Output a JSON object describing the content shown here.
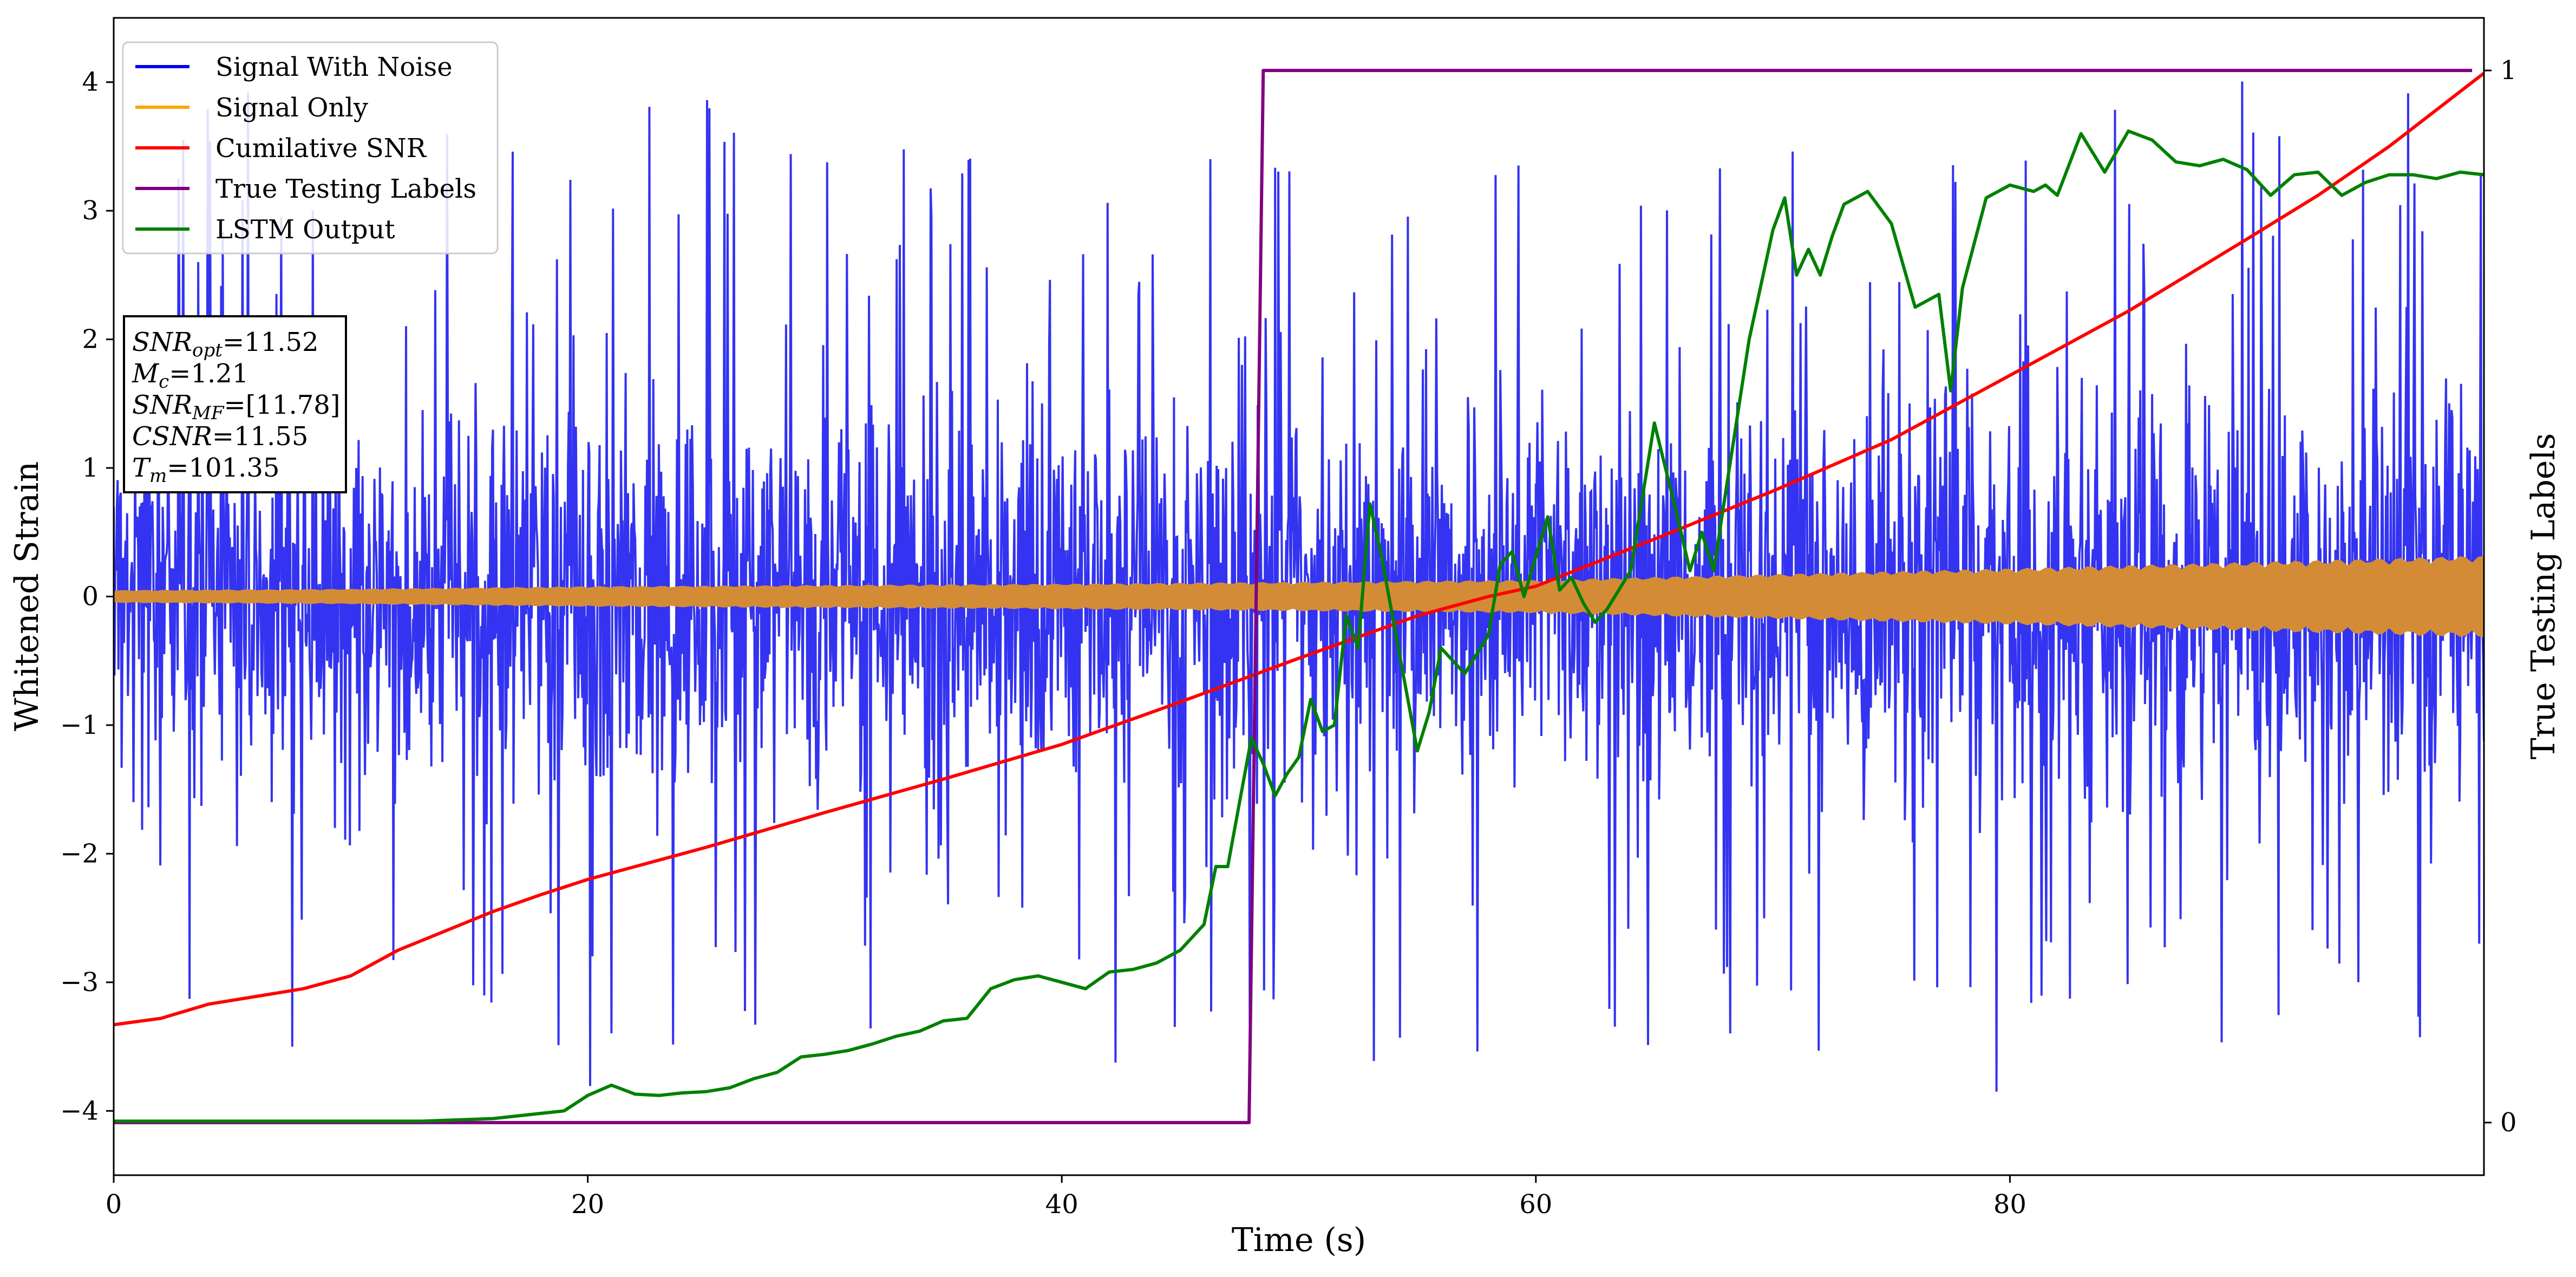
{
  "chart_data": {
    "type": "line",
    "xlabel": "Time (s)",
    "ylabel_left": "Whitened Strain",
    "ylabel_right": "True Testing Labels",
    "xlim": [
      0,
      100
    ],
    "ylim_left": [
      -4.5,
      4.5
    ],
    "ylim_right": [
      -0.05,
      1.05
    ],
    "x_ticks": [
      0,
      20,
      40,
      60,
      80
    ],
    "y_ticks_left": [
      -4,
      -3,
      -2,
      -1,
      0,
      1,
      2,
      3,
      4
    ],
    "y_ticks_right": [
      0,
      1
    ],
    "grid": false,
    "legend_position": "top-left",
    "series": [
      {
        "name": "Signal With Noise",
        "color": "#0000ee",
        "axis": "left",
        "style": "dense noise, mostly within ±2, spikes to about ±4",
        "typical_range": [
          -2.3,
          2.3
        ],
        "extreme_range": [
          -3.85,
          4.1
        ]
      },
      {
        "name": "Signal Only",
        "color": "#ffa500",
        "axis": "left",
        "style": "chirp band whose envelope grows over time",
        "envelope": [
          [
            0,
            0.05
          ],
          [
            10,
            0.06
          ],
          [
            20,
            0.08
          ],
          [
            40,
            0.1
          ],
          [
            60,
            0.13
          ],
          [
            80,
            0.22
          ],
          [
            100,
            0.32
          ]
        ]
      },
      {
        "name": "Cumilative SNR",
        "color": "#ff0000",
        "axis": "left",
        "points": [
          [
            0,
            -3.33
          ],
          [
            2,
            -3.28
          ],
          [
            4,
            -3.17
          ],
          [
            6,
            -3.11
          ],
          [
            8,
            -3.05
          ],
          [
            10,
            -2.95
          ],
          [
            12,
            -2.75
          ],
          [
            14,
            -2.6
          ],
          [
            16,
            -2.45
          ],
          [
            18,
            -2.32
          ],
          [
            20,
            -2.2
          ],
          [
            25,
            -1.95
          ],
          [
            30,
            -1.68
          ],
          [
            35,
            -1.42
          ],
          [
            40,
            -1.15
          ],
          [
            45,
            -0.82
          ],
          [
            50,
            -0.48
          ],
          [
            55,
            -0.15
          ],
          [
            58,
            0.0
          ],
          [
            60,
            0.08
          ],
          [
            63,
            0.3
          ],
          [
            66,
            0.52
          ],
          [
            70,
            0.82
          ],
          [
            75,
            1.22
          ],
          [
            80,
            1.72
          ],
          [
            85,
            2.22
          ],
          [
            90,
            2.78
          ],
          [
            93,
            3.12
          ],
          [
            96,
            3.5
          ],
          [
            100,
            4.07
          ]
        ]
      },
      {
        "name": "True Testing Labels",
        "color": "#800080",
        "axis": "right",
        "points": [
          [
            0,
            0
          ],
          [
            47.9,
            0
          ],
          [
            48.5,
            1
          ],
          [
            99.5,
            1
          ]
        ]
      },
      {
        "name": "LSTM Output",
        "color": "#008000",
        "axis": "left",
        "points": [
          [
            0,
            -4.08
          ],
          [
            13,
            -4.08
          ],
          [
            16,
            -4.06
          ],
          [
            18,
            -4.02
          ],
          [
            19,
            -4.0
          ],
          [
            20,
            -3.88
          ],
          [
            21,
            -3.8
          ],
          [
            22,
            -3.87
          ],
          [
            23,
            -3.88
          ],
          [
            24,
            -3.86
          ],
          [
            25,
            -3.85
          ],
          [
            26,
            -3.82
          ],
          [
            27,
            -3.75
          ],
          [
            28,
            -3.7
          ],
          [
            29,
            -3.58
          ],
          [
            30,
            -3.56
          ],
          [
            31,
            -3.53
          ],
          [
            32,
            -3.48
          ],
          [
            33,
            -3.42
          ],
          [
            34,
            -3.38
          ],
          [
            35,
            -3.3
          ],
          [
            36,
            -3.28
          ],
          [
            37,
            -3.05
          ],
          [
            38,
            -2.98
          ],
          [
            39,
            -2.95
          ],
          [
            40,
            -3.0
          ],
          [
            41,
            -3.05
          ],
          [
            42,
            -2.92
          ],
          [
            43,
            -2.9
          ],
          [
            44,
            -2.85
          ],
          [
            45,
            -2.75
          ],
          [
            46,
            -2.55
          ],
          [
            46.5,
            -2.1
          ],
          [
            47,
            -2.1
          ],
          [
            47.5,
            -1.6
          ],
          [
            48,
            -1.1
          ],
          [
            48.5,
            -1.3
          ],
          [
            49,
            -1.55
          ],
          [
            49.5,
            -1.38
          ],
          [
            50,
            -1.25
          ],
          [
            50.5,
            -0.8
          ],
          [
            51,
            -1.05
          ],
          [
            51.5,
            -1.0
          ],
          [
            52,
            -0.15
          ],
          [
            52.5,
            -0.4
          ],
          [
            53,
            0.72
          ],
          [
            53.5,
            0.3
          ],
          [
            54,
            -0.2
          ],
          [
            55,
            -1.2
          ],
          [
            55.5,
            -0.9
          ],
          [
            56,
            -0.4
          ],
          [
            57,
            -0.6
          ],
          [
            58,
            -0.3
          ],
          [
            58.5,
            0.25
          ],
          [
            59,
            0.35
          ],
          [
            59.5,
            0.0
          ],
          [
            60.5,
            0.62
          ],
          [
            61,
            0.05
          ],
          [
            61.5,
            0.15
          ],
          [
            62,
            -0.05
          ],
          [
            62.5,
            -0.2
          ],
          [
            63,
            -0.1
          ],
          [
            64,
            0.2
          ],
          [
            65,
            1.35
          ],
          [
            66,
            0.6
          ],
          [
            66.5,
            0.2
          ],
          [
            67,
            0.5
          ],
          [
            67.5,
            0.2
          ],
          [
            68,
            0.8
          ],
          [
            69,
            2.0
          ],
          [
            70,
            2.85
          ],
          [
            70.5,
            3.1
          ],
          [
            71,
            2.5
          ],
          [
            71.5,
            2.7
          ],
          [
            72,
            2.5
          ],
          [
            72.5,
            2.8
          ],
          [
            73,
            3.05
          ],
          [
            74,
            3.15
          ],
          [
            75,
            2.9
          ],
          [
            76,
            2.25
          ],
          [
            77,
            2.35
          ],
          [
            77.5,
            1.6
          ],
          [
            78,
            2.4
          ],
          [
            79,
            3.1
          ],
          [
            80,
            3.2
          ],
          [
            81,
            3.15
          ],
          [
            81.5,
            3.2
          ],
          [
            82,
            3.12
          ],
          [
            83,
            3.6
          ],
          [
            84,
            3.3
          ],
          [
            85,
            3.62
          ],
          [
            86,
            3.55
          ],
          [
            87,
            3.38
          ],
          [
            88,
            3.35
          ],
          [
            89,
            3.4
          ],
          [
            90,
            3.32
          ],
          [
            91,
            3.12
          ],
          [
            92,
            3.28
          ],
          [
            93,
            3.3
          ],
          [
            94,
            3.12
          ],
          [
            95,
            3.22
          ],
          [
            96,
            3.28
          ],
          [
            97,
            3.28
          ],
          [
            98,
            3.25
          ],
          [
            99,
            3.3
          ],
          [
            100,
            3.28
          ]
        ]
      }
    ],
    "annotation_lines": [
      {
        "label": "SNR",
        "sub": "opt",
        "value": "=11.52"
      },
      {
        "label": "M",
        "sub": "c",
        "value": "=1.21"
      },
      {
        "label": "SNR",
        "sub": "MF",
        "value": "=[11.78]"
      },
      {
        "label": "CSNR",
        "sub": "",
        "value": "=11.55"
      },
      {
        "label": "T",
        "sub": "m",
        "value": "=101.35"
      }
    ]
  }
}
